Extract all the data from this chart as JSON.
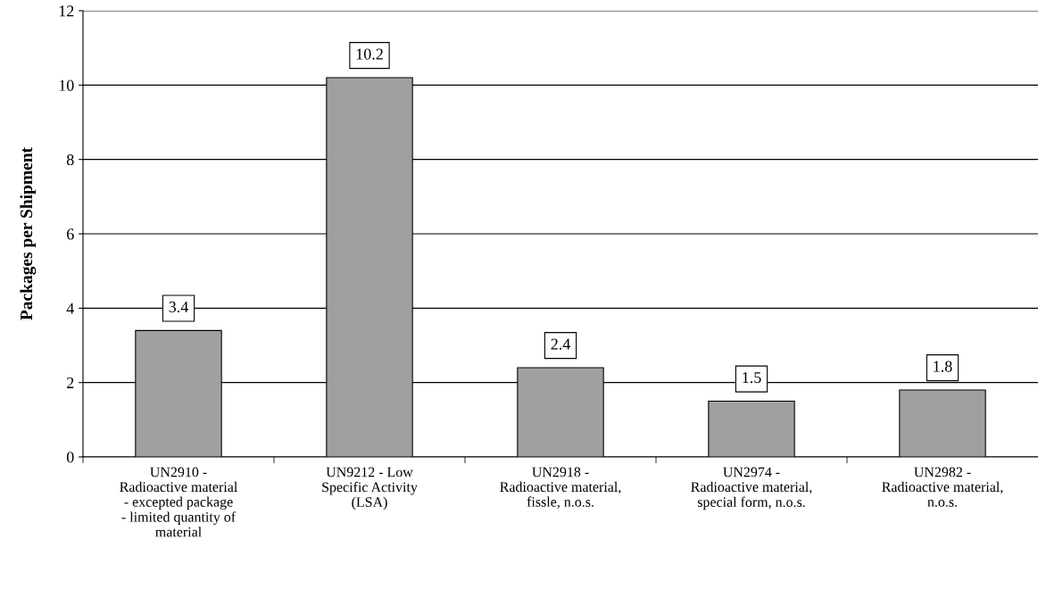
{
  "chart_data": {
    "type": "bar",
    "ylabel": "Packages per Shipment",
    "categories": [
      "UN2910 -\nRadioactive material\n- excepted package\n- limited quantity of\nmaterial",
      "UN9212 - Low\nSpecific Activity\n(LSA)",
      "UN2918 -\nRadioactive material,\nfissle, n.o.s.",
      "UN2974 -\nRadioactive material,\nspecial form, n.o.s.",
      "UN2982 -\nRadioactive material,\nn.o.s."
    ],
    "values": [
      3.4,
      10.2,
      2.4,
      1.5,
      1.8
    ],
    "color": "#a0a0a0",
    "ylim": [
      0,
      12
    ],
    "yticks": [
      0,
      2,
      4,
      6,
      8,
      10,
      12
    ],
    "grid": "y",
    "data_labels": true
  }
}
